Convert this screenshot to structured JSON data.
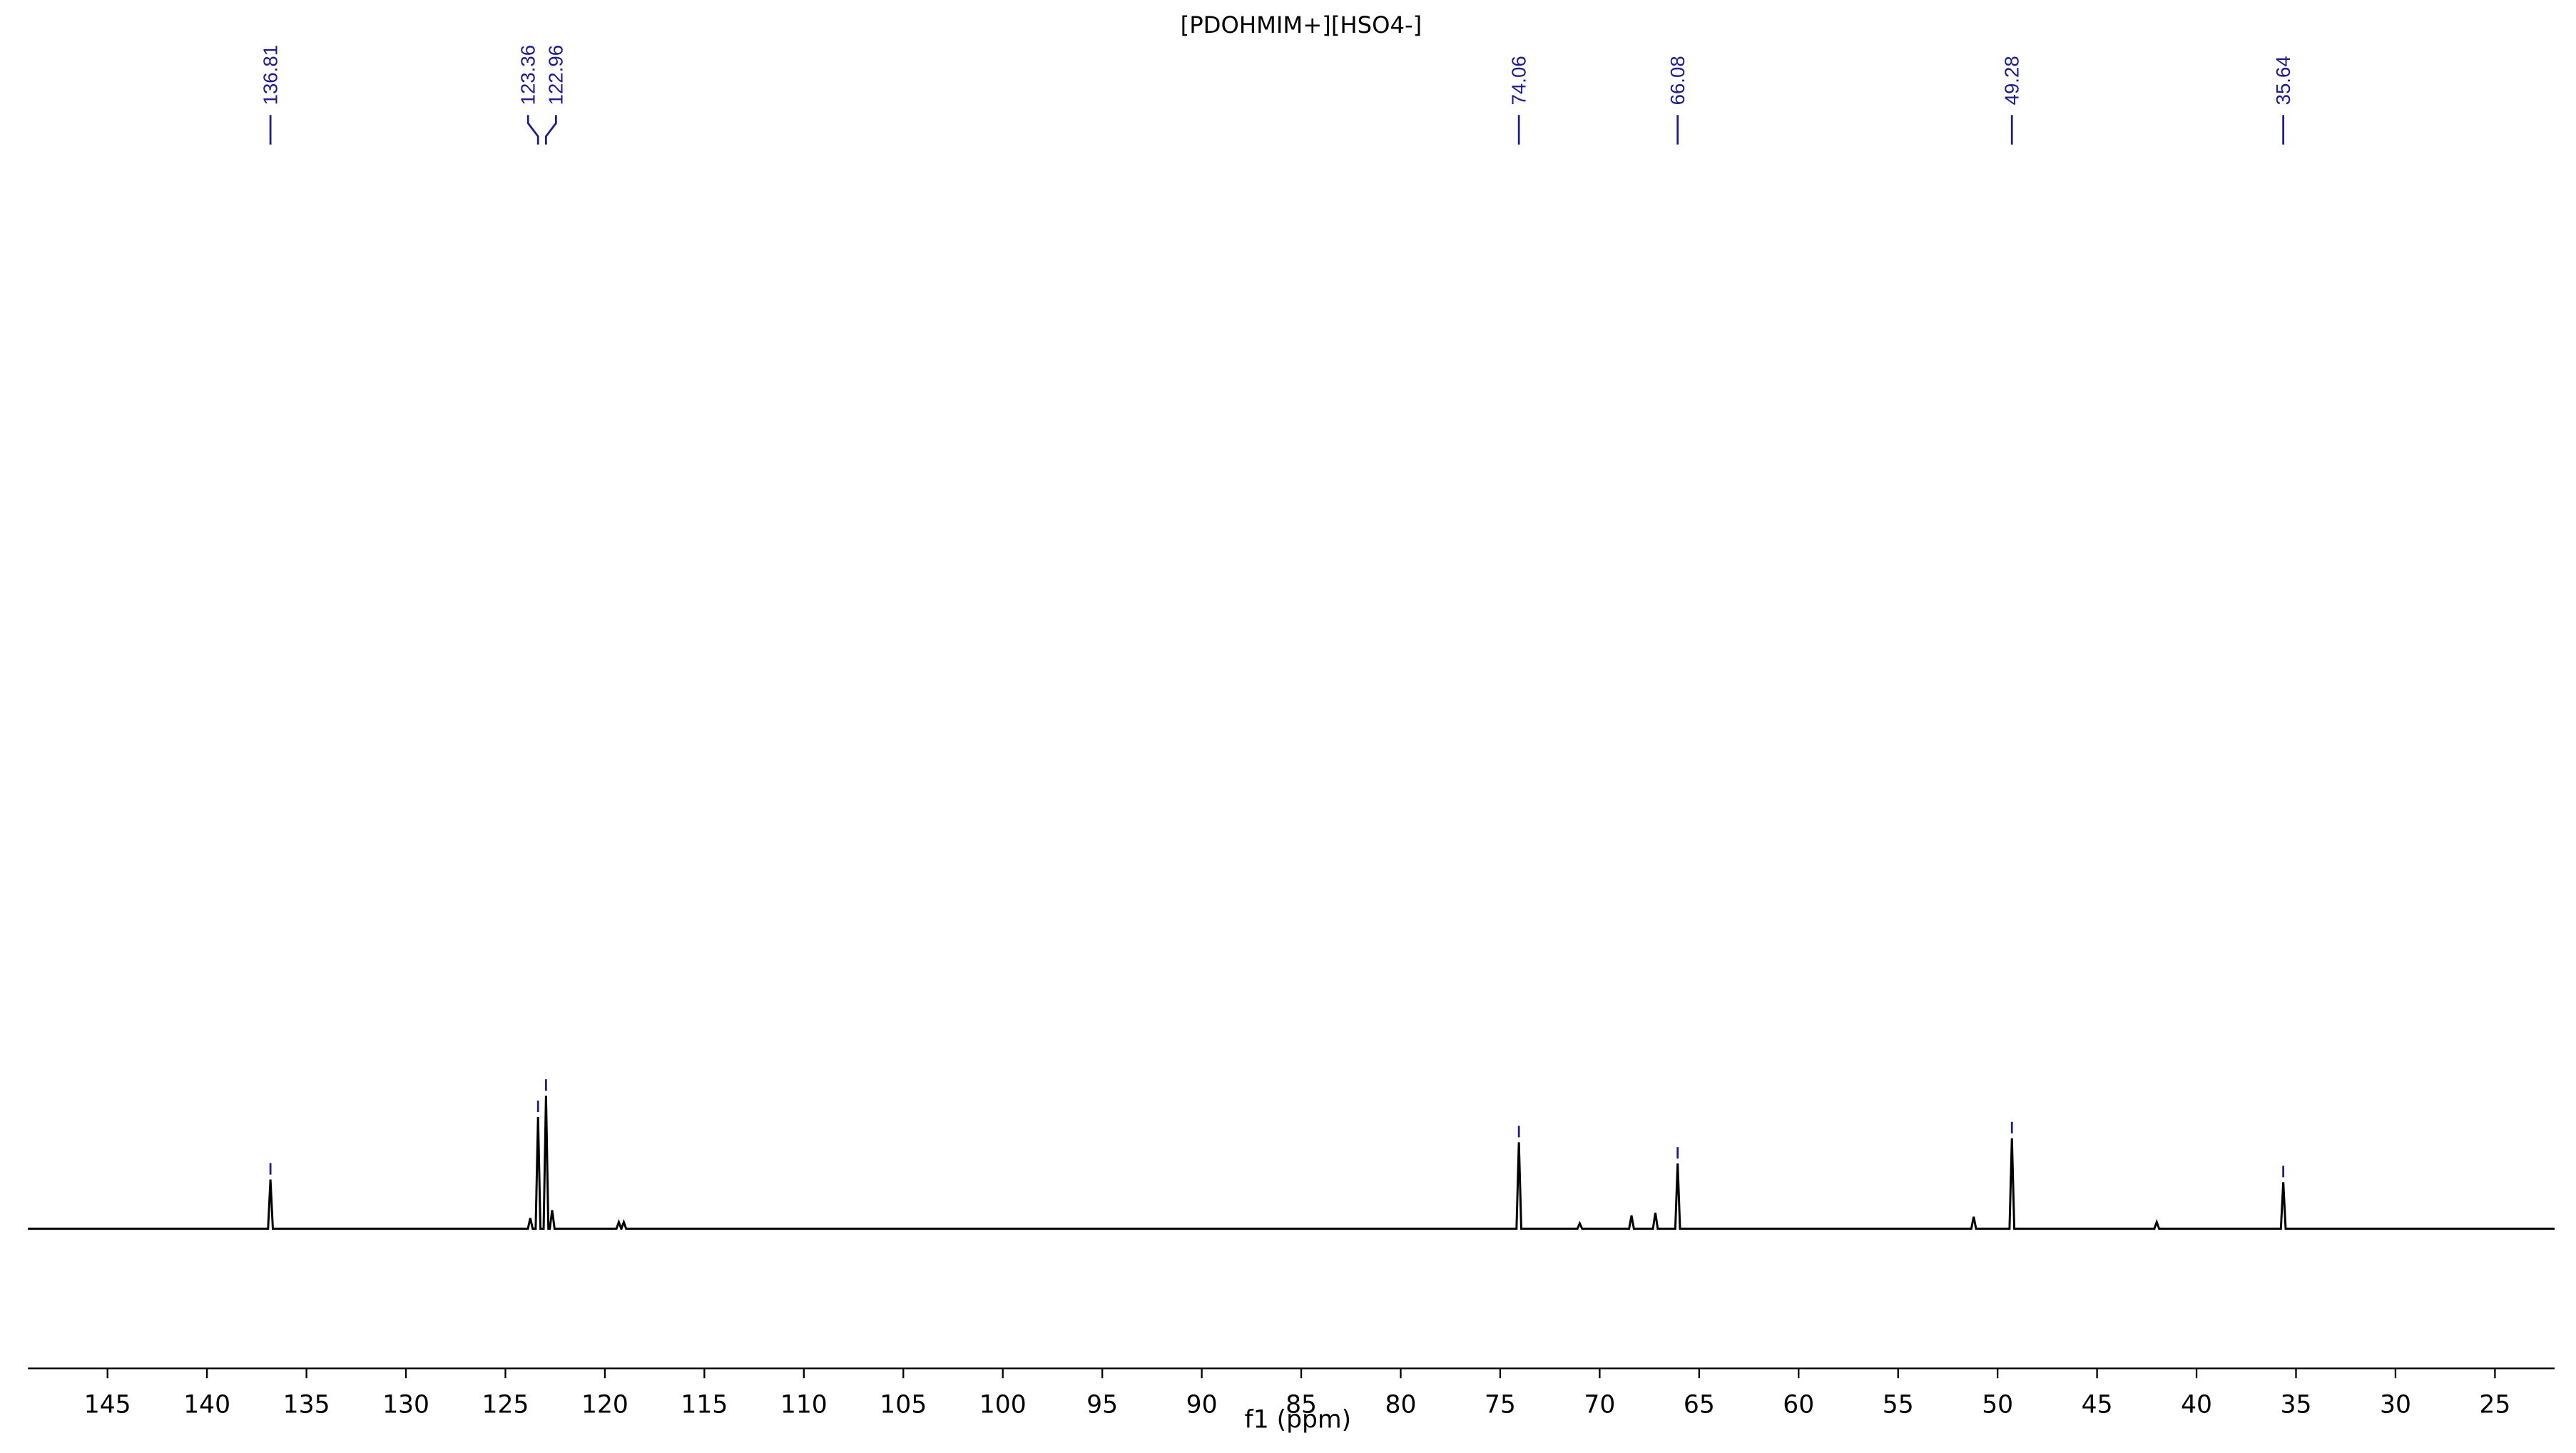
{
  "chart_data": {
    "type": "spectrum",
    "title": "[PDOHMIM+][HSO4-]",
    "x_label": "f1 (ppm)",
    "xlim": [
      149,
      22
    ],
    "xticks": [
      145,
      140,
      135,
      130,
      125,
      120,
      115,
      110,
      105,
      100,
      95,
      90,
      85,
      80,
      75,
      70,
      65,
      60,
      55,
      50,
      45,
      40,
      35,
      30,
      25
    ],
    "color": "#000000",
    "label_color": "#1c1c8a",
    "x": [
      149,
      136.93,
      136.81,
      136.69,
      123.87,
      123.75,
      123.63,
      123.48,
      123.36,
      123.24,
      123.08,
      122.96,
      122.84,
      122.77,
      122.65,
      122.53,
      119.42,
      119.3,
      119.18,
      119.17,
      119.05,
      118.93,
      74.18,
      74.06,
      73.94,
      71.12,
      71.0,
      70.88,
      68.52,
      68.4,
      68.28,
      67.32,
      67.2,
      67.08,
      66.2,
      66.08,
      65.96,
      51.32,
      51.2,
      51.08,
      49.4,
      49.28,
      49.16,
      42.12,
      42.0,
      41.88,
      35.76,
      35.64,
      35.52,
      22
    ],
    "values": [
      0,
      0,
      0.37,
      0,
      0,
      0.08,
      0,
      0,
      0.84,
      0,
      0,
      1.0,
      0,
      0,
      0.14,
      0,
      0,
      0.05,
      0,
      0,
      0.05,
      0,
      0,
      0.65,
      0,
      0,
      0.04,
      0,
      0,
      0.1,
      0,
      0,
      0.12,
      0,
      0,
      0.49,
      0,
      0,
      0.09,
      0,
      0,
      0.68,
      0,
      0,
      0.05,
      0,
      0,
      0.35,
      0,
      0
    ],
    "peak_labels": [
      136.81,
      123.36,
      122.96,
      74.06,
      66.08,
      49.28,
      35.64
    ]
  }
}
